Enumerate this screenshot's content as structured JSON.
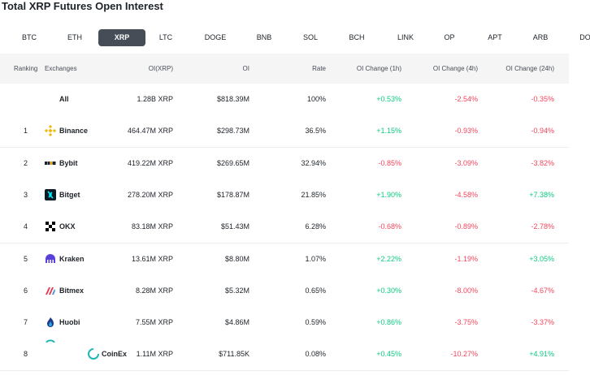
{
  "page_title": "Total XRP Futures Open Interest",
  "tabs": [
    {
      "label": "BTC"
    },
    {
      "label": "ETH"
    },
    {
      "label": "XRP",
      "active": true
    },
    {
      "label": "LTC"
    },
    {
      "label": "DOGE"
    },
    {
      "label": "BNB"
    },
    {
      "label": "SOL"
    },
    {
      "label": "BCH"
    },
    {
      "label": "LINK"
    },
    {
      "label": "OP"
    },
    {
      "label": "APT"
    },
    {
      "label": "ARB"
    },
    {
      "label": "DO"
    }
  ],
  "table": {
    "headers": {
      "ranking": "Ranking",
      "exchanges": "Exchanges",
      "oi_xrp": "OI(XRP)",
      "oi": "OI",
      "rate": "Rate",
      "chg_1h": "OI Change (1h)",
      "chg_4h": "OI Change (4h)",
      "chg_24h": "OI Change (24h)"
    },
    "rows": [
      {
        "rank": "",
        "exchange": "All",
        "logo": "none",
        "oi_xrp": "1.28B XRP",
        "oi": "$818.39M",
        "rate": "100%",
        "chg_1h": "+0.53%",
        "chg_4h": "-2.54%",
        "chg_24h": "-0.35%"
      },
      {
        "rank": "1",
        "exchange": "Binance",
        "logo": "binance-logo",
        "oi_xrp": "464.47M XRP",
        "oi": "$298.73M",
        "rate": "36.5%",
        "chg_1h": "+1.15%",
        "chg_4h": "-0.93%",
        "chg_24h": "-0.94%"
      },
      {
        "rank": "2",
        "exchange": "Bybit",
        "logo": "bybit-logo",
        "oi_xrp": "419.22M XRP",
        "oi": "$269.65M",
        "rate": "32.94%",
        "chg_1h": "-0.85%",
        "chg_4h": "-3.09%",
        "chg_24h": "-3.82%"
      },
      {
        "rank": "3",
        "exchange": "Bitget",
        "logo": "bitget-logo",
        "oi_xrp": "278.20M XRP",
        "oi": "$178.87M",
        "rate": "21.85%",
        "chg_1h": "+1.90%",
        "chg_4h": "-4.58%",
        "chg_24h": "+7.38%"
      },
      {
        "rank": "4",
        "exchange": "OKX",
        "logo": "okx-logo",
        "oi_xrp": "83.18M XRP",
        "oi": "$51.43M",
        "rate": "6.28%",
        "chg_1h": "-0.68%",
        "chg_4h": "-0.89%",
        "chg_24h": "-2.78%"
      },
      {
        "rank": "5",
        "exchange": "Kraken",
        "logo": "kraken-logo",
        "oi_xrp": "13.61M XRP",
        "oi": "$8.80M",
        "rate": "1.07%",
        "chg_1h": "+2.22%",
        "chg_4h": "-1.19%",
        "chg_24h": "+3.05%"
      },
      {
        "rank": "6",
        "exchange": "Bitmex",
        "logo": "bitmex-logo",
        "oi_xrp": "8.28M XRP",
        "oi": "$5.32M",
        "rate": "0.65%",
        "chg_1h": "+0.30%",
        "chg_4h": "-8.00%",
        "chg_24h": "-4.67%"
      },
      {
        "rank": "7",
        "exchange": "Huobi",
        "logo": "huobi-logo",
        "oi_xrp": "7.55M XRP",
        "oi": "$4.86M",
        "rate": "0.59%",
        "chg_1h": "+0.86%",
        "chg_4h": "-3.75%",
        "chg_24h": "-3.37%"
      },
      {
        "rank": "8",
        "exchange": "CoinEx",
        "logo": "coinex-logo",
        "oi_xrp": "1.11M XRP",
        "oi": "$711.85K",
        "rate": "0.08%",
        "chg_1h": "+0.45%",
        "chg_4h": "-10.27%",
        "chg_24h": "+4.91%"
      }
    ]
  },
  "colors": {
    "positive": "#0ecb81",
    "negative": "#f6465d",
    "active_tab": "#474d57"
  }
}
